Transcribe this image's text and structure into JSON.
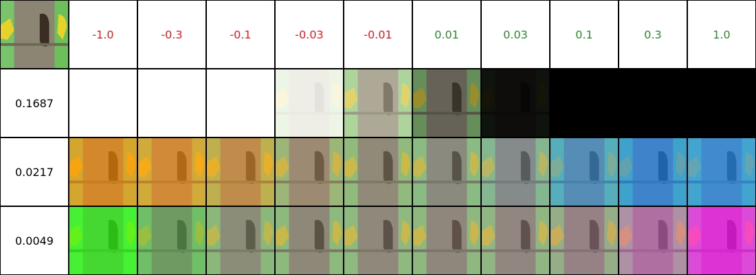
{
  "column_headers": [
    {
      "label": "-1.0",
      "color": "#e31a1c"
    },
    {
      "label": "-0.3",
      "color": "#e31a1c"
    },
    {
      "label": "-0.1",
      "color": "#e31a1c"
    },
    {
      "label": "-0.03",
      "color": "#e31a1c"
    },
    {
      "label": "-0.01",
      "color": "#e31a1c"
    },
    {
      "label": "0.01",
      "color": "#2a8a2a"
    },
    {
      "label": "0.03",
      "color": "#2a8a2a"
    },
    {
      "label": "0.1",
      "color": "#2a8a2a"
    },
    {
      "label": "0.3",
      "color": "#2a8a2a"
    },
    {
      "label": "1.0",
      "color": "#2a8a2a"
    }
  ],
  "rows": [
    {
      "label": "0.1687",
      "tiles": [
        {
          "tint": "#ffffff",
          "visibility": 0
        },
        {
          "tint": "#ffffff",
          "visibility": 0
        },
        {
          "tint": "#ffffff",
          "visibility": 0
        },
        {
          "tint": "#fbfbf5",
          "visibility": 0.12
        },
        {
          "tint": "#d7d5c2",
          "visibility": 0.55
        },
        {
          "tint": "#3a3833",
          "visibility": 0.55
        },
        {
          "tint": "#030303",
          "visibility": 0.08
        },
        {
          "tint": "#000000",
          "visibility": 0
        },
        {
          "tint": "#000000",
          "visibility": 0
        },
        {
          "tint": "#000000",
          "visibility": 0
        }
      ]
    },
    {
      "label": "0.0217",
      "tiles": [
        {
          "tint": "#ff8a00",
          "visibility": 0.38
        },
        {
          "tint": "#ff8f10",
          "visibility": 0.4
        },
        {
          "tint": "#e9922a",
          "visibility": 0.45
        },
        {
          "tint": "#b09172",
          "visibility": 0.55
        },
        {
          "tint": "#9a937f",
          "visibility": 0.62
        },
        {
          "tint": "#8a9191",
          "visibility": 0.62
        },
        {
          "tint": "#7c93a8",
          "visibility": 0.55
        },
        {
          "tint": "#2f92e8",
          "visibility": 0.42
        },
        {
          "tint": "#0f84ff",
          "visibility": 0.38
        },
        {
          "tint": "#1a8cff",
          "visibility": 0.35
        }
      ]
    },
    {
      "label": "0.0049",
      "tiles": [
        {
          "tint": "#24ff10",
          "visibility": 0.32
        },
        {
          "tint": "#58ad55",
          "visibility": 0.45
        },
        {
          "tint": "#89967c",
          "visibility": 0.55
        },
        {
          "tint": "#918d80",
          "visibility": 0.62
        },
        {
          "tint": "#958d86",
          "visibility": 0.62
        },
        {
          "tint": "#958a88",
          "visibility": 0.62
        },
        {
          "tint": "#9a8a92",
          "visibility": 0.6
        },
        {
          "tint": "#a27f9a",
          "visibility": 0.55
        },
        {
          "tint": "#c860c2",
          "visibility": 0.42
        },
        {
          "tint": "#ff10ff",
          "visibility": 0.3
        }
      ]
    }
  ],
  "colors": {
    "grid_line": "#000000",
    "bark": "#8c8574",
    "hole": "#3a2e22",
    "foliage": "#8ad47a",
    "bird": "#e7d22a",
    "perch": "#6a6a55"
  }
}
